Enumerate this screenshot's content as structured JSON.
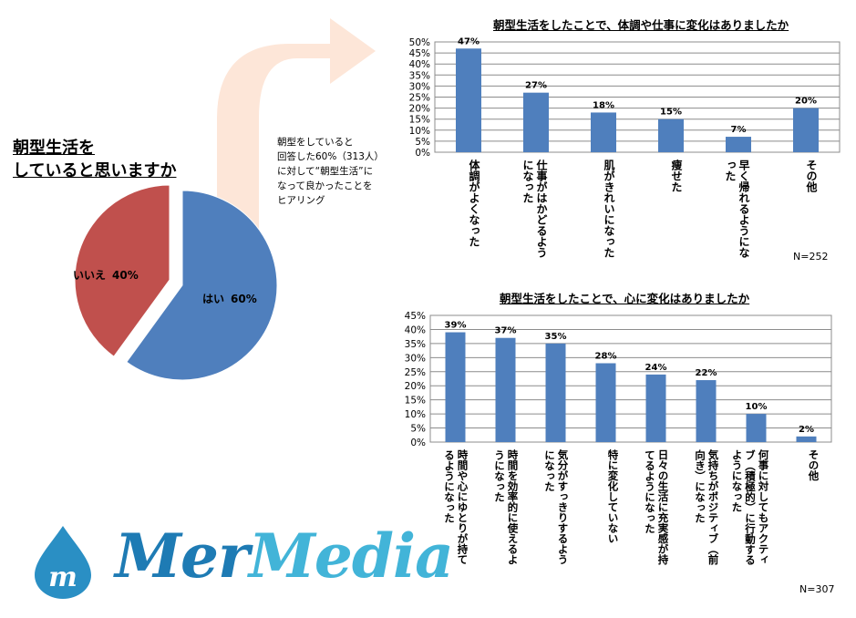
{
  "pie": {
    "title_line1": "朝型生活を",
    "title_line2": "していると思いますか",
    "slices": [
      {
        "label": "はい",
        "value": 60,
        "value_label": "60%",
        "color": "#4f7fbd"
      },
      {
        "label": "いいえ",
        "value": 40,
        "value_label": "40%",
        "color": "#c0504d"
      }
    ]
  },
  "note": {
    "line1": "朝型をしていると",
    "line2": "回答した60%（313人）",
    "line3": "に対して“朝型生活”に",
    "line4": "なって良かったことを",
    "line5": "ヒアリング"
  },
  "chart_data": [
    {
      "type": "bar",
      "title": "朝型生活をしたことで、体調や仕事に変化はありましたか",
      "categories": [
        "体調がよくなった",
        "仕事がはかどるようになった",
        "肌がきれいになった",
        "痩せた",
        "早く帰れるようになった",
        "その他"
      ],
      "values": [
        47,
        27,
        18,
        15,
        7,
        20
      ],
      "value_labels": [
        "47%",
        "27%",
        "18%",
        "15%",
        "7%",
        "20%"
      ],
      "ylim": [
        0,
        50
      ],
      "yticks": [
        "0%",
        "5%",
        "10%",
        "15%",
        "20%",
        "25%",
        "30%",
        "35%",
        "40%",
        "45%",
        "50%"
      ],
      "grid": true,
      "bar_color": "#4f7fbd",
      "n_label": "N=252"
    },
    {
      "type": "bar",
      "title": "朝型生活をしたことで、心に変化はありましたか",
      "categories": [
        "時間や心にゆとりが持てるようになった",
        "時間を効率的に使えるようになった",
        "気分がすっきりするようになった",
        "特に変化していない",
        "日々の生活に充実感が持てるようになった",
        "気持ちがポジティブ（前向き）になった",
        "何事に対してもアクティブ（積極的）に行動するようになった",
        "その他"
      ],
      "values": [
        39,
        37,
        35,
        28,
        24,
        22,
        10,
        2
      ],
      "value_labels": [
        "39%",
        "37%",
        "35%",
        "28%",
        "24%",
        "22%",
        "10%",
        "2%"
      ],
      "ylim": [
        0,
        45
      ],
      "yticks": [
        "0%",
        "5%",
        "10%",
        "15%",
        "20%",
        "25%",
        "30%",
        "35%",
        "40%",
        "45%"
      ],
      "grid": true,
      "bar_color": "#4f7fbd",
      "n_label": "N=307"
    }
  ],
  "logo": {
    "mer": "Mer",
    "media": "Media",
    "drop_letter": "m"
  }
}
